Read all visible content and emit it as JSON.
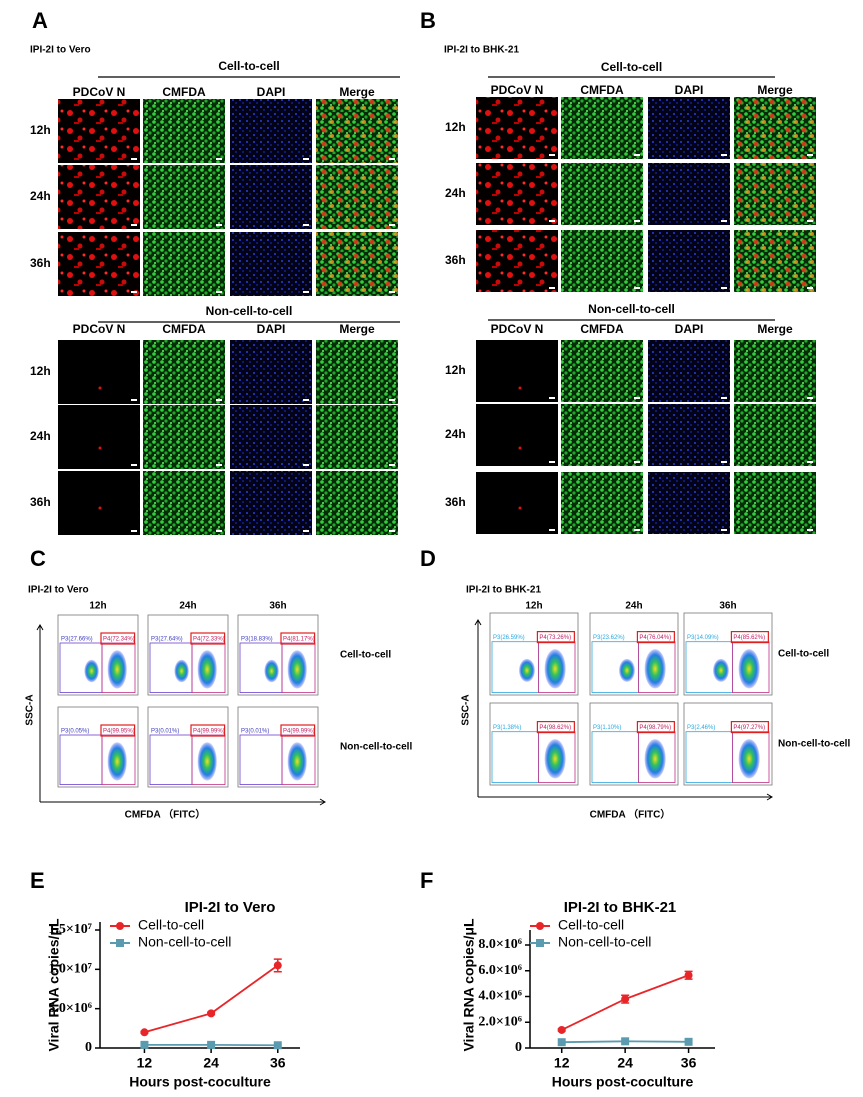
{
  "panels": [
    {
      "letter": "A",
      "subtitle": "IPI-2I to Vero",
      "groups": [
        {
          "title": "Cell-to-cell",
          "columns": [
            "PDCoV N",
            "CMFDA",
            "DAPI",
            "Merge"
          ],
          "rows": [
            "12h",
            "24h",
            "36h"
          ]
        },
        {
          "title": "Non-cell-to-cell",
          "columns": [
            "PDCoV N",
            "CMFDA",
            "DAPI",
            "Merge"
          ],
          "rows": [
            "12h",
            "24h",
            "36h"
          ]
        }
      ]
    },
    {
      "letter": "B",
      "subtitle": "IPI-2I to BHK-21",
      "groups": [
        {
          "title": "Cell-to-cell",
          "columns": [
            "PDCoV N",
            "CMFDA",
            "DAPI",
            "Merge"
          ],
          "rows": [
            "12h",
            "24h",
            "36h"
          ]
        },
        {
          "title": "Non-cell-to-cell",
          "columns": [
            "PDCoV N",
            "CMFDA",
            "DAPI",
            "Merge"
          ],
          "rows": [
            "12h",
            "24h",
            "36h"
          ]
        }
      ]
    }
  ],
  "flow": [
    {
      "letter": "C",
      "subtitle": "IPI-2I to Vero",
      "columns": [
        "12h",
        "24h",
        "36h"
      ],
      "y_label": "SSC-A",
      "x_label": "CMFDA （FITC）",
      "rows": [
        {
          "label": "Cell-to-cell",
          "gates": [
            [
              "P3(27.66%)",
              "P4(72.34%)"
            ],
            [
              "P3(27.64%)",
              "P4(72.33%)"
            ],
            [
              "P3(18.83%)",
              "P4(81.17%)"
            ]
          ]
        },
        {
          "label": "Non-cell-to-cell",
          "gates": [
            [
              "P3(0.05%)",
              "P4(99.95%)"
            ],
            [
              "P3(0.01%)",
              "P4(99.99%)"
            ],
            [
              "P3(0.01%)",
              "P4(99.99%)"
            ]
          ]
        }
      ]
    },
    {
      "letter": "D",
      "subtitle": "IPI-2I to BHK-21",
      "columns": [
        "12h",
        "24h",
        "36h"
      ],
      "y_label": "SSC-A",
      "x_label": "CMFDA （FITC）",
      "rows": [
        {
          "label": "Cell-to-cell",
          "gates": [
            [
              "P3(26.59%)",
              "P4(73.26%)"
            ],
            [
              "P3(23.62%)",
              "P4(76.04%)"
            ],
            [
              "P3(14.09%)",
              "P4(85.62%)"
            ]
          ]
        },
        {
          "label": "Non-cell-to-cell",
          "gates": [
            [
              "P3(1.38%)",
              "P4(98.62%)"
            ],
            [
              "P3(1.10%)",
              "P4(98.79%)"
            ],
            [
              "P3(2.46%)",
              "P4(97.27%)"
            ]
          ]
        }
      ]
    }
  ],
  "chart_data": [
    {
      "type": "line",
      "panel_label": "E",
      "title": "IPI-2I to Vero",
      "x_label": "Hours post-coculture",
      "y_label": "Viral RNA copies/μL",
      "x": [
        12,
        24,
        36
      ],
      "xlim": [
        4,
        40
      ],
      "xticks": [
        12,
        24,
        36
      ],
      "ylim": [
        0,
        15000000
      ],
      "yticks": [
        0,
        {
          "value": 5000000,
          "label": "5.0×10⁶"
        },
        {
          "value": 10000000,
          "label": "1.0×10⁷"
        },
        {
          "value": 15000000,
          "label": "1.5×10⁷"
        }
      ],
      "series": [
        {
          "name": "Cell-to-cell",
          "color": "#e8262a",
          "marker": "circle",
          "values": [
            2000000,
            4400000,
            10500000
          ],
          "errors": [
            100000,
            150000,
            800000
          ]
        },
        {
          "name": "Non-cell-to-cell",
          "color": "#5b9bb0",
          "marker": "square",
          "values": [
            400000,
            400000,
            350000
          ]
        }
      ]
    },
    {
      "type": "line",
      "panel_label": "F",
      "title": "IPI-2I to BHK-21",
      "x_label": "Hours post-coculture",
      "y_label": "Viral RNA copies/μL",
      "x": [
        12,
        24,
        36
      ],
      "xlim": [
        6,
        41
      ],
      "xticks": [
        12,
        24,
        36
      ],
      "ylim": [
        0,
        8000000
      ],
      "yticks": [
        0,
        {
          "value": 2000000,
          "label": "2.0×10⁶"
        },
        {
          "value": 4000000,
          "label": "4.0×10⁶"
        },
        {
          "value": 6000000,
          "label": "6.0×10⁶"
        },
        {
          "value": 8000000,
          "label": "8.0×10⁶"
        }
      ],
      "series": [
        {
          "name": "Cell-to-cell",
          "color": "#e8262a",
          "marker": "circle",
          "values": [
            1400000,
            3800000,
            5650000
          ],
          "errors": [
            80000,
            300000,
            300000
          ]
        },
        {
          "name": "Non-cell-to-cell",
          "color": "#5b9bb0",
          "marker": "square",
          "values": [
            450000,
            520000,
            480000
          ]
        }
      ]
    }
  ]
}
